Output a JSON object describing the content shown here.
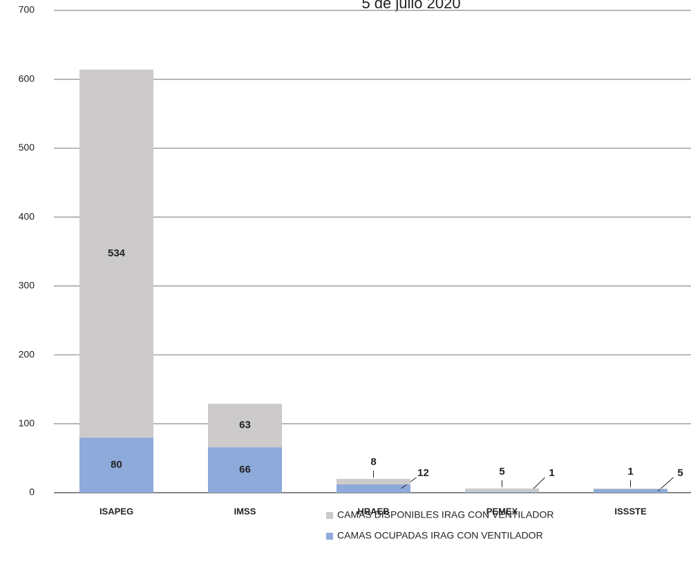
{
  "chart_data": {
    "type": "stacked_bar",
    "title": "5 de julio 2020",
    "categories": [
      "ISAPEG",
      "IMSS",
      "HRAEB",
      "PEMEX",
      "ISSSTE"
    ],
    "series": [
      {
        "name": "CAMAS OCUPADAS IRAG CON VENTILADOR",
        "color": "#8eaadb",
        "values": [
          80,
          66,
          12,
          1,
          5
        ]
      },
      {
        "name": "CAMAS DISPONIBLES IRAG  CON VENTILADOR",
        "color": "#cccaca",
        "values": [
          534,
          63,
          8,
          5,
          1
        ]
      }
    ],
    "ylim": [
      0,
      700
    ],
    "yticks": [
      0,
      100,
      200,
      300,
      400,
      500,
      600,
      700
    ],
    "grid": true
  }
}
